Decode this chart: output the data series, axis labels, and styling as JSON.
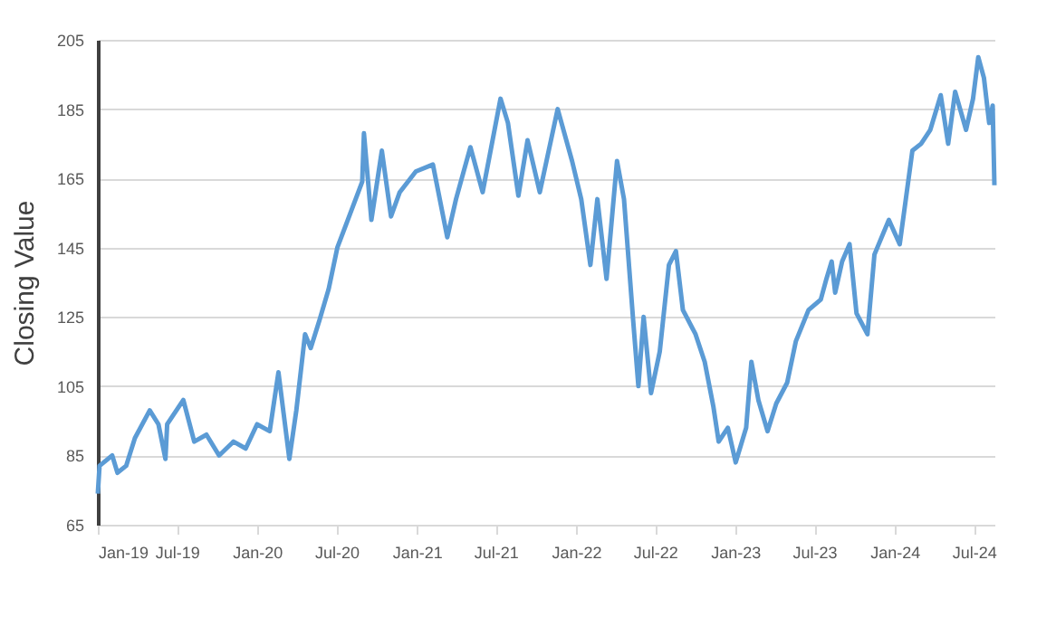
{
  "chart_data": {
    "type": "line",
    "ylabel": "Closing Value",
    "x": [
      "2019-01-01",
      "2019-01-05",
      "2019-02-03",
      "2019-02-15",
      "2019-03-07",
      "2019-03-27",
      "2019-04-30",
      "2019-05-20",
      "2019-06-05",
      "2019-06-09",
      "2019-07-16",
      "2019-08-10",
      "2019-09-07",
      "2019-10-06",
      "2019-11-08",
      "2019-12-06",
      "2020-01-01",
      "2020-01-30",
      "2020-02-19",
      "2020-03-02",
      "2020-03-15",
      "2020-03-31",
      "2020-04-20",
      "2020-05-03",
      "2020-05-23",
      "2020-06-13",
      "2020-07-03",
      "2020-08-29",
      "2020-09-02",
      "2020-09-19",
      "2020-10-13",
      "2020-11-03",
      "2020-11-23",
      "2020-12-30",
      "2021-02-07",
      "2021-03-12",
      "2021-04-01",
      "2021-05-04",
      "2021-06-01",
      "2021-07-12",
      "2021-07-29",
      "2021-08-22",
      "2021-09-12",
      "2021-10-10",
      "2021-11-20",
      "2021-12-23",
      "2022-01-13",
      "2022-02-03",
      "2022-02-19",
      "2022-03-12",
      "2022-04-05",
      "2022-04-21",
      "2022-05-12",
      "2022-05-24",
      "2022-06-05",
      "2022-06-22",
      "2022-07-12",
      "2022-08-02",
      "2022-08-18",
      "2022-09-03",
      "2022-10-02",
      "2022-10-23",
      "2022-11-12",
      "2022-11-24",
      "2022-12-15",
      "2023-01-02",
      "2023-01-26",
      "2023-02-07",
      "2023-02-23",
      "2023-03-16",
      "2023-04-05",
      "2023-04-30",
      "2023-05-20",
      "2023-06-18",
      "2023-07-16",
      "2023-07-29",
      "2023-08-10",
      "2023-08-18",
      "2023-09-03",
      "2023-09-20",
      "2023-10-06",
      "2023-10-31",
      "2023-11-16",
      "2023-12-19",
      "2024-01-13",
      "2024-02-11",
      "2024-03-02",
      "2024-03-23",
      "2024-04-16",
      "2024-05-03",
      "2024-05-19",
      "2024-06-13",
      "2024-06-29",
      "2024-07-11",
      "2024-07-24",
      "2024-08-05",
      "2024-08-13",
      "2024-08-17"
    ],
    "series": [
      {
        "color": "#5b9bd5",
        "values": [
          74,
          82,
          85,
          80,
          82,
          90,
          98,
          94,
          84,
          94,
          101,
          89,
          91,
          85,
          89,
          87,
          94,
          92,
          109,
          97,
          84,
          98,
          120,
          116,
          124,
          133,
          145,
          164,
          178,
          153,
          173,
          154,
          161,
          167,
          169,
          148,
          159,
          174,
          161,
          188,
          181,
          160,
          176,
          161,
          185,
          170,
          159,
          140,
          159,
          136,
          170,
          159,
          124,
          105,
          125,
          103,
          115,
          140,
          144,
          127,
          120,
          112,
          99,
          89,
          93,
          83,
          93,
          112,
          101,
          92,
          100,
          106,
          118,
          127,
          130,
          136,
          141,
          132,
          141,
          146,
          126,
          120,
          143,
          153,
          146,
          173,
          175,
          179,
          189,
          175,
          190,
          179,
          188,
          200,
          194,
          181,
          186,
          163
        ]
      }
    ],
    "ylim": [
      65,
      205
    ],
    "yticks": [
      65,
      85,
      105,
      125,
      145,
      165,
      185,
      205
    ],
    "xlim": [
      "2019-01-01",
      "2024-08-17"
    ],
    "xticks": [
      {
        "value": "2019-01-01",
        "label": "Jan-19"
      },
      {
        "value": "2019-07-01",
        "label": "Jul-19"
      },
      {
        "value": "2020-01-01",
        "label": "Jan-20"
      },
      {
        "value": "2020-07-01",
        "label": "Jul-20"
      },
      {
        "value": "2021-01-01",
        "label": "Jan-21"
      },
      {
        "value": "2021-07-01",
        "label": "Jul-21"
      },
      {
        "value": "2022-01-01",
        "label": "Jan-22"
      },
      {
        "value": "2022-07-01",
        "label": "Jul-22"
      },
      {
        "value": "2023-01-01",
        "label": "Jan-23"
      },
      {
        "value": "2023-07-01",
        "label": "Jul-23"
      },
      {
        "value": "2024-01-01",
        "label": "Jan-24"
      },
      {
        "value": "2024-07-01",
        "label": "Jul-24"
      }
    ],
    "grid": "y",
    "marker": "none",
    "line_style": "solid"
  }
}
